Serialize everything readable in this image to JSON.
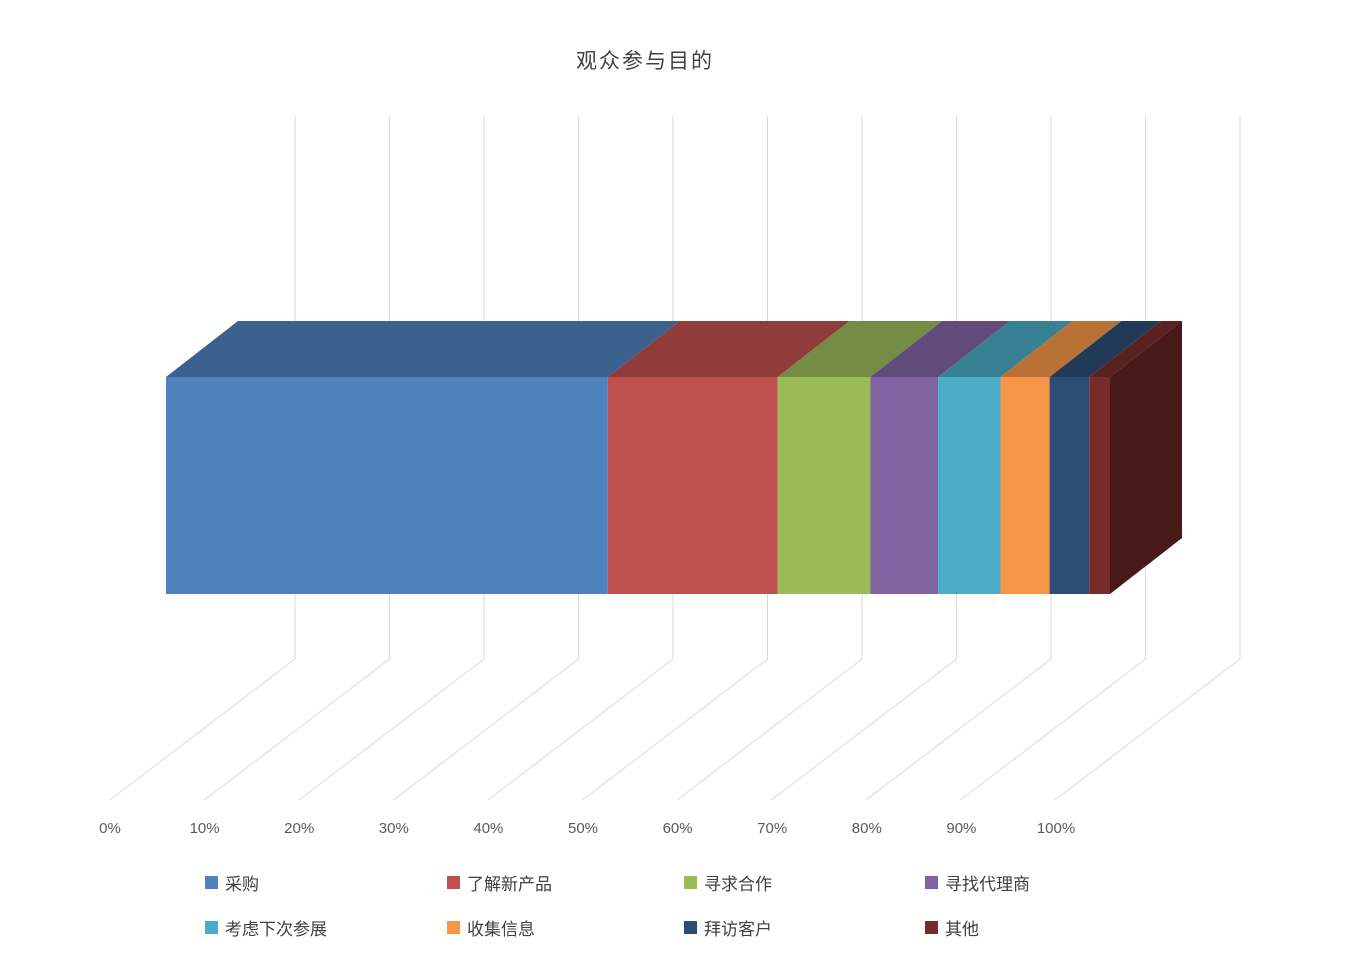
{
  "chart_data": {
    "type": "bar",
    "subtype": "3d-horizontal-stacked-100pct",
    "title": "观众参与目的",
    "categories": [
      "采购",
      "了解新产品",
      "寻求合作",
      "寻找代理商",
      "考虑下次参展",
      "收集信息",
      "拜访客户",
      "其他"
    ],
    "values": [
      46.8,
      18.0,
      9.8,
      7.2,
      6.6,
      5.2,
      4.2,
      2.2
    ],
    "unit": "%",
    "colors": [
      "#4F81BD",
      "#C0504D",
      "#9BBB59",
      "#8064A2",
      "#4BACC6",
      "#F79646",
      "#2C4D75",
      "#772C2A"
    ],
    "x_ticks": [
      "0%",
      "10%",
      "20%",
      "30%",
      "40%",
      "50%",
      "60%",
      "70%",
      "80%",
      "90%",
      "100%"
    ],
    "xlim": [
      0,
      100
    ],
    "grid": true,
    "legend_position": "bottom",
    "legend_columns": 4
  },
  "style_colors": {
    "background": "#FFFFFF",
    "gridline": "#D9D9D9",
    "title_text": "#404040",
    "axis_text": "#595959",
    "legend_text": "#404040"
  }
}
